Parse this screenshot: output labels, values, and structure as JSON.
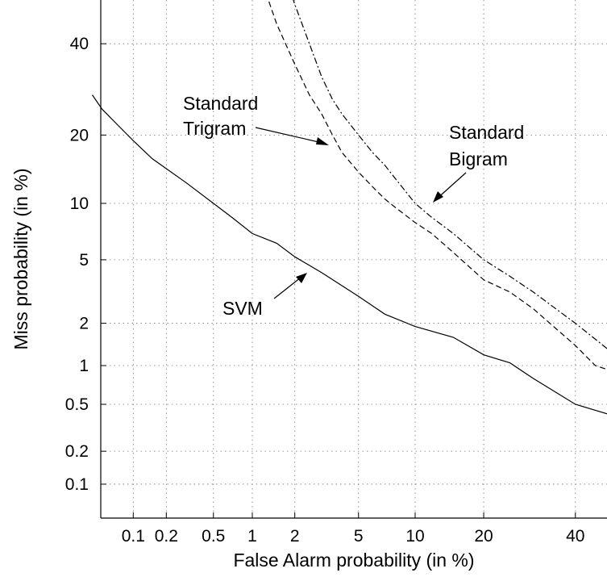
{
  "chart_data": {
    "type": "line",
    "title": "",
    "xlabel": "False Alarm probability (in %)",
    "ylabel": "Miss probability (in %)",
    "scale": "normal-deviate (DET)",
    "xlim": [
      0.04,
      55
    ],
    "ylim": [
      0.04,
      55
    ],
    "grid": true,
    "x_ticks": [
      {
        "value": 0.1,
        "label": "0.1"
      },
      {
        "value": 0.2,
        "label": "0.2"
      },
      {
        "value": 0.5,
        "label": "0.5"
      },
      {
        "value": 1,
        "label": "1"
      },
      {
        "value": 2,
        "label": "2"
      },
      {
        "value": 5,
        "label": "5"
      },
      {
        "value": 10,
        "label": "10"
      },
      {
        "value": 20,
        "label": "20"
      },
      {
        "value": 40,
        "label": "40"
      }
    ],
    "y_ticks": [
      {
        "value": 0.1,
        "label": "0.1"
      },
      {
        "value": 0.2,
        "label": "0.2"
      },
      {
        "value": 0.5,
        "label": "0.5"
      },
      {
        "value": 1,
        "label": "1"
      },
      {
        "value": 2,
        "label": "2"
      },
      {
        "value": 5,
        "label": "5"
      },
      {
        "value": 10,
        "label": "10"
      },
      {
        "value": 20,
        "label": "20"
      },
      {
        "value": 40,
        "label": "40"
      }
    ],
    "series": [
      {
        "name": "SVM",
        "style": "solid",
        "x": [
          0.04,
          0.05,
          0.07,
          0.1,
          0.15,
          0.2,
          0.3,
          0.5,
          0.7,
          1,
          1.5,
          2,
          3,
          5,
          7,
          10,
          15,
          20,
          25,
          30,
          40,
          50,
          55
        ],
        "y": [
          28,
          25,
          22,
          19,
          16,
          14.5,
          12.5,
          10,
          8.5,
          7,
          6.2,
          5.2,
          4.2,
          3,
          2.3,
          1.9,
          1.6,
          1.2,
          1.05,
          0.8,
          0.5,
          0.4,
          0.35
        ]
      },
      {
        "name": "Standard Trigram",
        "style": "dashed",
        "x": [
          1.2,
          1.5,
          2,
          2.5,
          3,
          3.5,
          4,
          5,
          6,
          7,
          8,
          10,
          12,
          15,
          20,
          25,
          30,
          40,
          45,
          55
        ],
        "y": [
          55,
          45,
          35,
          28,
          24,
          20,
          17,
          14,
          12,
          10.5,
          9.5,
          8,
          7,
          5.5,
          3.8,
          3.2,
          2.5,
          1.4,
          1,
          0.8
        ]
      },
      {
        "name": "Standard Bigram",
        "style": "dashdot",
        "x": [
          1.8,
          2,
          2.5,
          3,
          3.5,
          4,
          5,
          6,
          7,
          8,
          10,
          12,
          15,
          20,
          25,
          30,
          40,
          50,
          55
        ],
        "y": [
          55,
          50,
          40,
          32,
          27,
          24,
          20,
          17,
          15,
          13,
          10,
          8.5,
          7,
          5,
          4,
          3.2,
          2,
          1.2,
          1
        ]
      }
    ],
    "annotations": [
      {
        "text": "Standard",
        "series": "Standard Trigram",
        "line": 1
      },
      {
        "text": "Trigram",
        "series": "Standard Trigram",
        "line": 2
      },
      {
        "text": "Standard",
        "series": "Standard Bigram",
        "line": 1
      },
      {
        "text": "Bigram",
        "series": "Standard Bigram",
        "line": 2
      },
      {
        "text": "SVM",
        "series": "SVM",
        "line": 1
      }
    ]
  }
}
